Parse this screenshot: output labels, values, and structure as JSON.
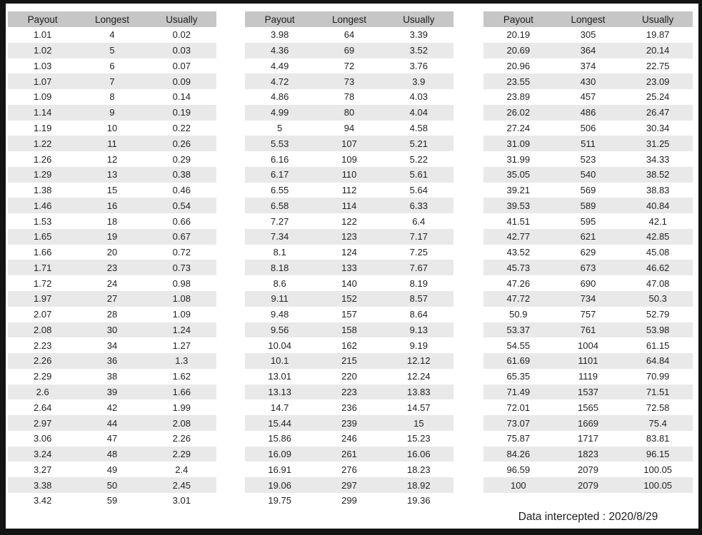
{
  "page": {
    "footer": "Data intercepted : 2020/8/29"
  },
  "colors": {
    "frame": "#141414",
    "header_bg": "#c6c6c6",
    "stripe_bg": "#e9e9e9",
    "text": "#222222"
  },
  "columns": [
    "Payout",
    "Longest",
    "Usually"
  ],
  "tables": [
    {
      "name": "payout-table-1",
      "rows": [
        [
          "1.01",
          "4",
          "0.02"
        ],
        [
          "1.02",
          "5",
          "0.03"
        ],
        [
          "1.03",
          "6",
          "0.07"
        ],
        [
          "1.07",
          "7",
          "0.09"
        ],
        [
          "1.09",
          "8",
          "0.14"
        ],
        [
          "1.14",
          "9",
          "0.19"
        ],
        [
          "1.19",
          "10",
          "0.22"
        ],
        [
          "1.22",
          "11",
          "0.26"
        ],
        [
          "1.26",
          "12",
          "0.29"
        ],
        [
          "1.29",
          "13",
          "0.38"
        ],
        [
          "1.38",
          "15",
          "0.46"
        ],
        [
          "1.46",
          "16",
          "0.54"
        ],
        [
          "1.53",
          "18",
          "0.66"
        ],
        [
          "1.65",
          "19",
          "0.67"
        ],
        [
          "1.66",
          "20",
          "0.72"
        ],
        [
          "1.71",
          "23",
          "0.73"
        ],
        [
          "1.72",
          "24",
          "0.98"
        ],
        [
          "1.97",
          "27",
          "1.08"
        ],
        [
          "2.07",
          "28",
          "1.09"
        ],
        [
          "2.08",
          "30",
          "1.24"
        ],
        [
          "2.23",
          "34",
          "1.27"
        ],
        [
          "2.26",
          "36",
          "1.3"
        ],
        [
          "2.29",
          "38",
          "1.62"
        ],
        [
          "2.6",
          "39",
          "1.66"
        ],
        [
          "2.64",
          "42",
          "1.99"
        ],
        [
          "2.97",
          "44",
          "2.08"
        ],
        [
          "3.06",
          "47",
          "2.26"
        ],
        [
          "3.24",
          "48",
          "2.29"
        ],
        [
          "3.27",
          "49",
          "2.4"
        ],
        [
          "3.38",
          "50",
          "2.45"
        ],
        [
          "3.42",
          "59",
          "3.01"
        ]
      ]
    },
    {
      "name": "payout-table-2",
      "rows": [
        [
          "3.98",
          "64",
          "3.39"
        ],
        [
          "4.36",
          "69",
          "3.52"
        ],
        [
          "4.49",
          "72",
          "3.76"
        ],
        [
          "4.72",
          "73",
          "3.9"
        ],
        [
          "4.86",
          "78",
          "4.03"
        ],
        [
          "4.99",
          "80",
          "4.04"
        ],
        [
          "5",
          "94",
          "4.58"
        ],
        [
          "5.53",
          "107",
          "5.21"
        ],
        [
          "6.16",
          "109",
          "5.22"
        ],
        [
          "6.17",
          "110",
          "5.61"
        ],
        [
          "6.55",
          "112",
          "5.64"
        ],
        [
          "6.58",
          "114",
          "6.33"
        ],
        [
          "7.27",
          "122",
          "6.4"
        ],
        [
          "7.34",
          "123",
          "7.17"
        ],
        [
          "8.1",
          "124",
          "7.25"
        ],
        [
          "8.18",
          "133",
          "7.67"
        ],
        [
          "8.6",
          "140",
          "8.19"
        ],
        [
          "9.11",
          "152",
          "8.57"
        ],
        [
          "9.48",
          "157",
          "8.64"
        ],
        [
          "9.56",
          "158",
          "9.13"
        ],
        [
          "10.04",
          "162",
          "9.19"
        ],
        [
          "10.1",
          "215",
          "12.12"
        ],
        [
          "13.01",
          "220",
          "12.24"
        ],
        [
          "13.13",
          "223",
          "13.83"
        ],
        [
          "14.7",
          "236",
          "14.57"
        ],
        [
          "15.44",
          "239",
          "15"
        ],
        [
          "15.86",
          "246",
          "15.23"
        ],
        [
          "16.09",
          "261",
          "16.06"
        ],
        [
          "16.91",
          "276",
          "18.23"
        ],
        [
          "19.06",
          "297",
          "18.92"
        ],
        [
          "19.75",
          "299",
          "19.36"
        ]
      ]
    },
    {
      "name": "payout-table-3",
      "rows": [
        [
          "20.19",
          "305",
          "19.87"
        ],
        [
          "20.69",
          "364",
          "20.14"
        ],
        [
          "20.96",
          "374",
          "22.75"
        ],
        [
          "23.55",
          "430",
          "23.09"
        ],
        [
          "23.89",
          "457",
          "25.24"
        ],
        [
          "26.02",
          "486",
          "26.47"
        ],
        [
          "27.24",
          "506",
          "30.34"
        ],
        [
          "31.09",
          "511",
          "31.25"
        ],
        [
          "31.99",
          "523",
          "34.33"
        ],
        [
          "35.05",
          "540",
          "38.52"
        ],
        [
          "39.21",
          "569",
          "38.83"
        ],
        [
          "39.53",
          "589",
          "40.84"
        ],
        [
          "41.51",
          "595",
          "42.1"
        ],
        [
          "42.77",
          "621",
          "42.85"
        ],
        [
          "43.52",
          "629",
          "45.08"
        ],
        [
          "45.73",
          "673",
          "46.62"
        ],
        [
          "47.26",
          "690",
          "47.08"
        ],
        [
          "47.72",
          "734",
          "50.3"
        ],
        [
          "50.9",
          "757",
          "52.79"
        ],
        [
          "53.37",
          "761",
          "53.98"
        ],
        [
          "54.55",
          "1004",
          "61.15"
        ],
        [
          "61.69",
          "1101",
          "64.84"
        ],
        [
          "65.35",
          "1119",
          "70.99"
        ],
        [
          "71.49",
          "1537",
          "71.51"
        ],
        [
          "72.01",
          "1565",
          "72.58"
        ],
        [
          "73.07",
          "1669",
          "75.4"
        ],
        [
          "75.87",
          "1717",
          "83.81"
        ],
        [
          "84.26",
          "1823",
          "96.15"
        ],
        [
          "96.59",
          "2079",
          "100.05"
        ],
        [
          "100",
          "2079",
          "100.05"
        ]
      ]
    }
  ]
}
